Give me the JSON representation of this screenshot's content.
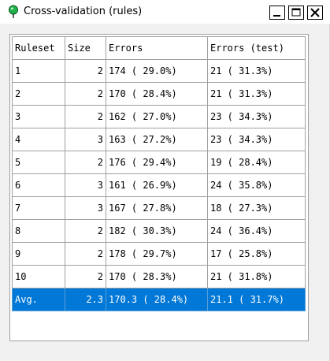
{
  "window": {
    "title": "Cross-validation (rules)",
    "icon": "green-balloon-icon",
    "controls": [
      "minimize-icon",
      "maximize-icon",
      "close-icon"
    ]
  },
  "table": {
    "columns": [
      "Ruleset",
      "Size",
      "Errors",
      "Errors (test)"
    ],
    "rows": [
      {
        "ruleset": "1",
        "size": "2",
        "errors": "174 ( 29.0%)",
        "errors_test": "21 ( 31.3%)"
      },
      {
        "ruleset": "2",
        "size": "2",
        "errors": "170 ( 28.4%)",
        "errors_test": "21 ( 31.3%)"
      },
      {
        "ruleset": "3",
        "size": "2",
        "errors": "162 ( 27.0%)",
        "errors_test": "23 ( 34.3%)"
      },
      {
        "ruleset": "4",
        "size": "3",
        "errors": "163 ( 27.2%)",
        "errors_test": "23 ( 34.3%)"
      },
      {
        "ruleset": "5",
        "size": "2",
        "errors": "176 ( 29.4%)",
        "errors_test": "19 ( 28.4%)"
      },
      {
        "ruleset": "6",
        "size": "3",
        "errors": "161 ( 26.9%)",
        "errors_test": "24 ( 35.8%)"
      },
      {
        "ruleset": "7",
        "size": "3",
        "errors": "167 ( 27.8%)",
        "errors_test": "18 ( 27.3%)"
      },
      {
        "ruleset": "8",
        "size": "2",
        "errors": "182 ( 30.3%)",
        "errors_test": "24 ( 36.4%)"
      },
      {
        "ruleset": "9",
        "size": "2",
        "errors": "178 ( 29.7%)",
        "errors_test": "17 ( 25.8%)"
      },
      {
        "ruleset": "10",
        "size": "2",
        "errors": "170 ( 28.3%)",
        "errors_test": "21 ( 31.8%)"
      }
    ],
    "average": {
      "ruleset": "Avg.",
      "size": "2.3",
      "errors": "170.3 ( 28.4%)",
      "errors_test": "21.1 ( 31.7%)"
    }
  },
  "colors": {
    "selection": "#0078d7",
    "grid_line": "#a0a0a0",
    "icon_green": "#22b14c"
  }
}
